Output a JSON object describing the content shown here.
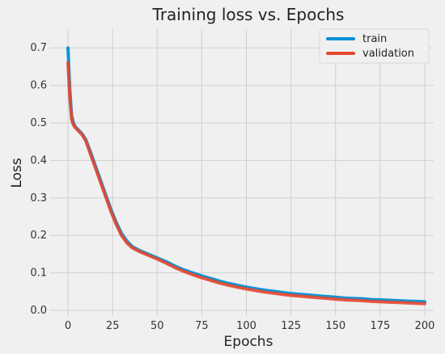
{
  "chart_data": {
    "type": "line",
    "title": "Training loss vs. Epochs",
    "xlabel": "Epochs",
    "ylabel": "Loss",
    "xlim": [
      -10,
      205
    ],
    "ylim": [
      -0.015,
      0.75
    ],
    "xticks": [
      0,
      25,
      50,
      75,
      100,
      125,
      150,
      175,
      200
    ],
    "yticks": [
      0.0,
      0.1,
      0.2,
      0.3,
      0.4,
      0.5,
      0.6,
      0.7
    ],
    "ytick_labels": [
      "0.0",
      "0.1",
      "0.2",
      "0.3",
      "0.4",
      "0.5",
      "0.6",
      "0.7"
    ],
    "grid": true,
    "legend_position": "top-right",
    "series": [
      {
        "name": "train",
        "color": "#008fd5",
        "x": [
          0,
          1,
          2,
          3,
          4,
          5,
          6,
          8,
          10,
          12,
          15,
          18,
          21,
          24,
          27,
          30,
          33,
          36,
          40,
          45,
          50,
          55,
          60,
          65,
          70,
          75,
          80,
          85,
          90,
          95,
          100,
          105,
          110,
          115,
          120,
          125,
          130,
          135,
          140,
          145,
          150,
          155,
          160,
          165,
          170,
          175,
          180,
          185,
          190,
          195,
          200
        ],
        "y": [
          0.7,
          0.59,
          0.52,
          0.5,
          0.49,
          0.485,
          0.48,
          0.47,
          0.455,
          0.43,
          0.39,
          0.35,
          0.31,
          0.27,
          0.235,
          0.205,
          0.185,
          0.17,
          0.16,
          0.15,
          0.14,
          0.13,
          0.118,
          0.108,
          0.1,
          0.092,
          0.085,
          0.078,
          0.072,
          0.067,
          0.062,
          0.058,
          0.054,
          0.051,
          0.048,
          0.045,
          0.043,
          0.041,
          0.039,
          0.037,
          0.035,
          0.033,
          0.032,
          0.031,
          0.029,
          0.028,
          0.027,
          0.026,
          0.025,
          0.024,
          0.023
        ]
      },
      {
        "name": "validation",
        "color": "#e5472f",
        "x": [
          0,
          1,
          2,
          3,
          4,
          5,
          6,
          8,
          10,
          12,
          15,
          18,
          21,
          24,
          27,
          30,
          33,
          36,
          40,
          45,
          50,
          55,
          60,
          65,
          70,
          75,
          80,
          85,
          90,
          95,
          100,
          105,
          110,
          115,
          120,
          125,
          130,
          135,
          140,
          145,
          150,
          155,
          160,
          165,
          170,
          175,
          180,
          185,
          190,
          195,
          200
        ],
        "y": [
          0.66,
          0.57,
          0.51,
          0.495,
          0.488,
          0.483,
          0.478,
          0.468,
          0.452,
          0.425,
          0.385,
          0.345,
          0.305,
          0.265,
          0.23,
          0.2,
          0.18,
          0.167,
          0.157,
          0.147,
          0.137,
          0.126,
          0.114,
          0.104,
          0.095,
          0.087,
          0.08,
          0.073,
          0.067,
          0.062,
          0.057,
          0.053,
          0.049,
          0.046,
          0.043,
          0.04,
          0.038,
          0.036,
          0.034,
          0.032,
          0.03,
          0.028,
          0.027,
          0.026,
          0.024,
          0.023,
          0.022,
          0.021,
          0.02,
          0.019,
          0.018
        ]
      }
    ]
  }
}
